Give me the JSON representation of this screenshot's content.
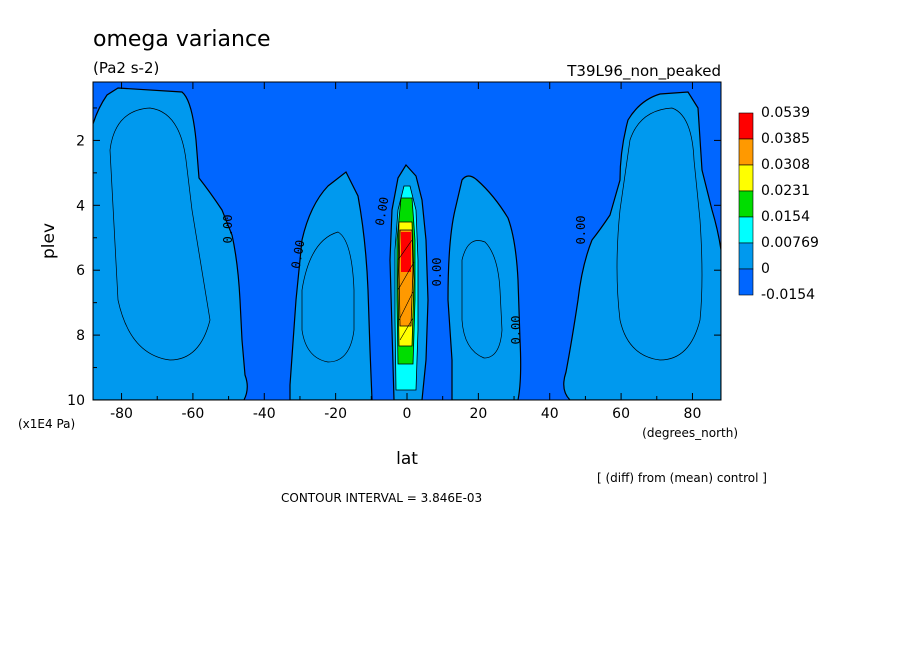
{
  "chart_data": {
    "type": "heatmap",
    "title": "omega variance",
    "units": "(Pa2 s-2)",
    "dataset": "T39L96_non_peaked",
    "xlabel": "lat",
    "x_units": "(degrees_north)",
    "ylabel": "plev",
    "y_units": "(x1E4 Pa)",
    "xlim": [
      -88,
      88
    ],
    "ylim": [
      10,
      0.2
    ],
    "x_ticks": [
      -80,
      -60,
      -40,
      -20,
      0,
      20,
      40,
      60,
      80
    ],
    "y_ticks": [
      2,
      4,
      6,
      8,
      10
    ],
    "contour_interval_text": "CONTOUR INTERVAL = 3.846E-03",
    "comparison_note": "[ (diff) from (mean) control ]",
    "legend": {
      "levels": [
        "0.0539",
        "0.0385",
        "0.0308",
        "0.0231",
        "0.0154",
        "0.00769",
        "0",
        "-0.0154"
      ],
      "colors": [
        "#ff0000",
        "#ff9900",
        "#ffff00",
        "#00dd00",
        "#00ffff",
        "#0099ee",
        "#0066ff"
      ]
    },
    "contour_labels": [
      "0.00",
      "0.00",
      "0.00",
      "0.00",
      "0.00",
      "0.00"
    ],
    "regions": [
      {
        "level": 0,
        "color": "#0099ee",
        "lat_range": [
          -88,
          -48
        ],
        "plev_range": [
          10,
          0.3
        ]
      },
      {
        "level": 0,
        "color": "#0099ee",
        "lat_range": [
          -32,
          -13
        ],
        "plev_range": [
          10,
          3.0
        ]
      },
      {
        "level": 0,
        "color": "#0099ee",
        "lat_range": [
          10,
          33
        ],
        "plev_range": [
          10,
          3.0
        ]
      },
      {
        "level": 0,
        "color": "#0099ee",
        "lat_range": [
          48,
          88
        ],
        "plev_range": [
          10,
          0.3
        ]
      },
      {
        "level": 0.0539,
        "color": "#ff0000",
        "lat_range": [
          -2,
          2
        ],
        "plev_range": [
          6.0,
          4.6
        ]
      }
    ]
  }
}
